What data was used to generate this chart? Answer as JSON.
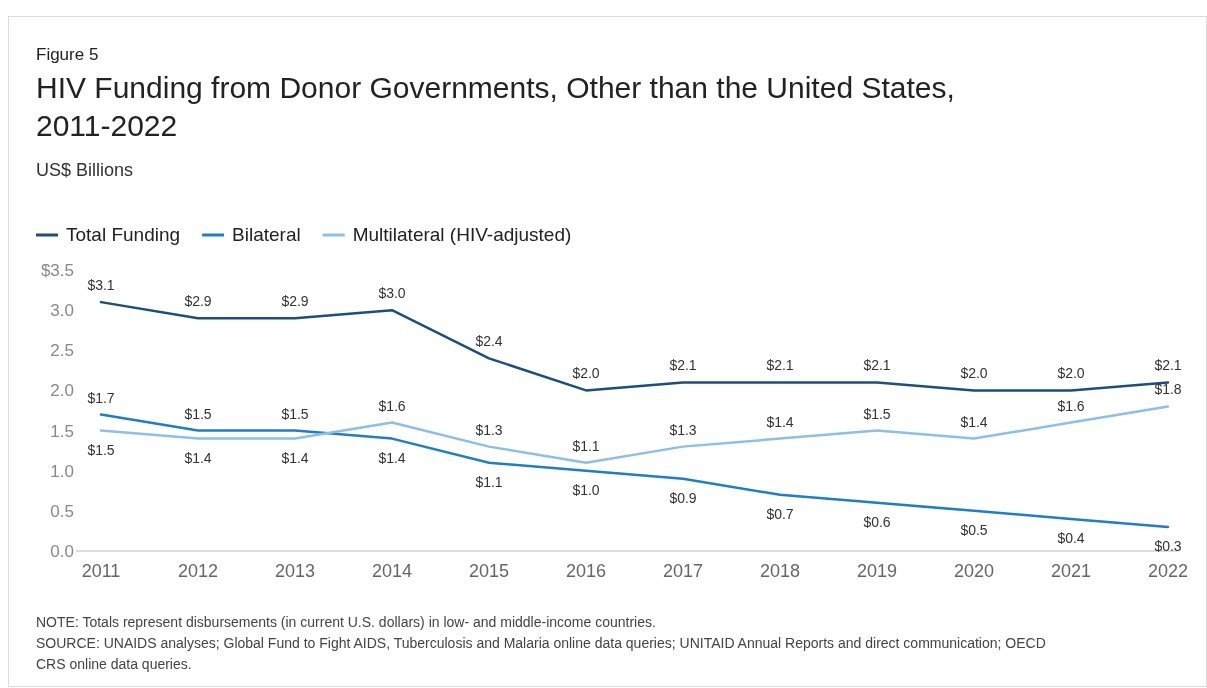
{
  "chart_data": {
    "type": "line",
    "title": "HIV Funding from Donor Governments, Other than the United States, 2011-2022",
    "subtitle": "US$ Billions",
    "categories": [
      "2011",
      "2012",
      "2013",
      "2014",
      "2015",
      "2016",
      "2017",
      "2018",
      "2019",
      "2020",
      "2021",
      "2022"
    ],
    "series": [
      {
        "name": "Total Funding",
        "color": "#1d4f7c",
        "values": [
          3.1,
          2.9,
          2.9,
          3.0,
          2.4,
          2.0,
          2.1,
          2.1,
          2.1,
          2.0,
          2.0,
          2.1
        ],
        "value_labels": [
          "$3.1",
          "$2.9",
          "$2.9",
          "$3.0",
          "$2.4",
          "$2.0",
          "$2.1",
          "$2.1",
          "$2.1",
          "$2.0",
          "$2.0",
          "$2.1"
        ]
      },
      {
        "name": "Bilateral",
        "color": "#1f7ec4",
        "values": [
          1.7,
          1.5,
          1.5,
          1.4,
          1.1,
          1.0,
          0.9,
          0.7,
          0.6,
          0.5,
          0.4,
          0.3
        ],
        "value_labels": [
          "$1.7",
          "$1.5",
          "$1.5",
          "$1.4",
          "$1.1",
          "$1.0",
          "$0.9",
          "$0.7",
          "$0.6",
          "$0.5",
          "$0.4",
          "$0.3"
        ]
      },
      {
        "name": "Multilateral (HIV-adjusted)",
        "color": "#8dbfe8",
        "values": [
          1.5,
          1.4,
          1.4,
          1.6,
          1.3,
          1.1,
          1.3,
          1.4,
          1.5,
          1.4,
          1.6,
          1.8
        ],
        "value_labels": [
          "$1.5",
          "$1.4",
          "$1.4",
          "$1.6",
          "$1.3",
          "$1.1",
          "$1.3",
          "$1.4",
          "$1.5",
          "$1.4",
          "$1.6",
          "$1.8"
        ]
      }
    ],
    "ylim": [
      0,
      3.5
    ],
    "yticks": [
      {
        "value": 0,
        "label": "0.0"
      },
      {
        "value": 0.5,
        "label": "0.5"
      },
      {
        "value": 1,
        "label": "1.0"
      },
      {
        "value": 1.5,
        "label": "1.5"
      },
      {
        "value": 2,
        "label": "2.0"
      },
      {
        "value": 2.5,
        "label": "2.5"
      },
      {
        "value": 3,
        "label": "3.0"
      },
      {
        "value": 3.5,
        "label": "$3.5"
      }
    ],
    "legend": "top left",
    "grid": false,
    "marker": "none",
    "line_style": "solid",
    "annotations": [
      "Figure 5",
      "NOTE: Totals represent disbursements (in current U.S. dollars) in low- and middle-income countries.",
      "SOURCE: UNAIDS analyses; Global Fund to Fight AIDS, Tuberculosis and Malaria online data queries; UNITAID Annual Reports and direct communication; OECD CRS online data queries."
    ]
  }
}
